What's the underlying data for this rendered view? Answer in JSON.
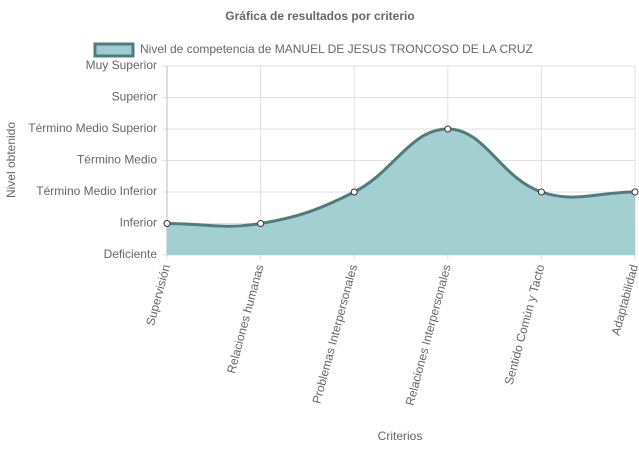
{
  "chart_data": {
    "type": "line",
    "title": "Gráfica de resultados por criterio",
    "x_label": "Criterios",
    "y_label": "Nivel obtenido",
    "categories": [
      "Supervisión",
      "Relaciones humanas",
      "Problemas Interpersonales",
      "Relaciones Interpersonales",
      "Sentido Común y Tacto",
      "Adaptabilidad"
    ],
    "series": [
      {
        "name": "Nivel de competencia de MANUEL DE JESUS TRONCOSO DE LA CRUZ",
        "color": "#4e7c80",
        "fill": "#9fcccf",
        "values": [
          1,
          1,
          2,
          4,
          2,
          2
        ]
      }
    ],
    "ylim": [
      0,
      6
    ],
    "yticks": [
      {
        "value": 0,
        "label": "Deficiente"
      },
      {
        "value": 1,
        "label": "Inferior"
      },
      {
        "value": 2,
        "label": "Término Medio Inferior"
      },
      {
        "value": 3,
        "label": "Término Medio"
      },
      {
        "value": 4,
        "label": "Término Medio Superior"
      },
      {
        "value": 5,
        "label": "Superior"
      },
      {
        "value": 6,
        "label": "Muy Superior"
      }
    ],
    "grid": true,
    "legend": "top"
  }
}
